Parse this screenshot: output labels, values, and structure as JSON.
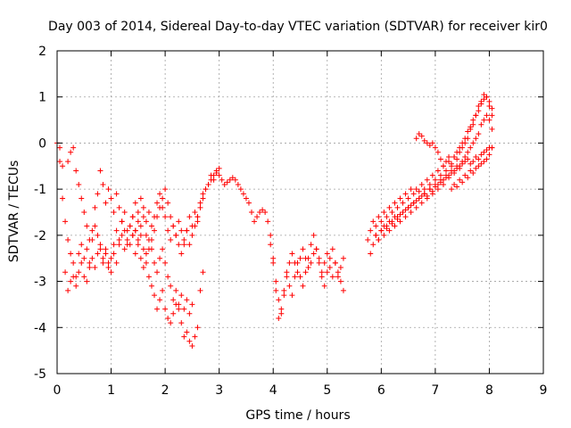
{
  "chart_data": {
    "type": "scatter",
    "title": "Day 003 of 2014, Sidereal Day-to-day VTEC variation (SDTVAR) for receiver kir0",
    "xlabel": "GPS time / hours",
    "ylabel": "SDTVAR / TECUs",
    "xlim": [
      0,
      9
    ],
    "ylim": [
      -5,
      2
    ],
    "xticks": [
      0,
      1,
      2,
      3,
      4,
      5,
      6,
      7,
      8,
      9
    ],
    "yticks": [
      2,
      1,
      0,
      -1,
      -2,
      -3,
      -4,
      -5
    ],
    "xtick_labels": [
      "0",
      "1",
      "2",
      "3",
      "4",
      "5",
      "6",
      "7",
      "8",
      "9"
    ],
    "ytick_labels": [
      "2",
      "1",
      "0",
      "-1",
      "-2",
      "-3",
      "-4",
      "-5"
    ],
    "grid": true,
    "marker": "+",
    "color": "#ff0000",
    "series": [
      {
        "name": "SDTVAR",
        "segments": [
          {
            "x": [
              0.0,
              0.05,
              0.1,
              0.15,
              0.2,
              0.25,
              0.3,
              0.35,
              0.4,
              0.45,
              0.5,
              0.55,
              0.6,
              0.65,
              0.7,
              0.75,
              0.8,
              0.85,
              0.9,
              0.95,
              1.0,
              1.05,
              1.1,
              1.15,
              1.2,
              1.25,
              1.3,
              1.35,
              1.4,
              1.45,
              1.5,
              1.55,
              1.6,
              1.65,
              1.7,
              1.75,
              1.8,
              1.85,
              1.9,
              1.95,
              2.0,
              2.05,
              2.1,
              2.15,
              2.2,
              2.25,
              2.3,
              2.35,
              2.4,
              2.45,
              2.5,
              2.55,
              2.6,
              2.65,
              2.7
            ],
            "y": [
              0.0,
              -0.4,
              -1.2,
              -2.8,
              -3.2,
              -3.0,
              -2.6,
              -2.9,
              -2.4,
              -2.2,
              -2.5,
              -2.3,
              -2.6,
              -2.1,
              -1.8,
              -2.0,
              -2.3,
              -2.6,
              -2.4,
              -2.7,
              -2.5,
              -2.2,
              -1.9,
              -2.1,
              -1.7,
              -1.9,
              -2.2,
              -1.8,
              -1.6,
              -1.9,
              -1.7,
              -2.0,
              -2.3,
              -2.6,
              -2.9,
              -3.1,
              -3.3,
              -3.6,
              -3.4,
              -3.2,
              -3.6,
              -3.8,
              -3.9,
              -3.7,
              -3.5,
              -3.6,
              -3.9,
              -4.2,
              -4.1,
              -4.3,
              -4.4,
              -4.2,
              -4.0,
              -3.2,
              -2.8
            ]
          },
          {
            "x": [
              0.2,
              0.25,
              0.3,
              0.35,
              0.4,
              0.45,
              0.5,
              0.55,
              0.6,
              0.65,
              0.7,
              0.75,
              0.8,
              0.85,
              0.9,
              0.95,
              1.0,
              1.05,
              1.1,
              1.15,
              1.2,
              1.25,
              1.3,
              1.35,
              1.4,
              1.45,
              1.5,
              1.55,
              1.6,
              1.65,
              1.7,
              1.75,
              1.8,
              1.85,
              1.9,
              1.95,
              2.0,
              2.05,
              2.1,
              2.15,
              2.2,
              2.25,
              2.3,
              2.35,
              2.4,
              2.45,
              2.5,
              2.55,
              2.6
            ],
            "y": [
              -0.4,
              -0.2,
              -0.1,
              -0.6,
              -0.9,
              -1.2,
              -1.5,
              -1.8,
              -2.1,
              -1.9,
              -1.4,
              -1.1,
              -0.6,
              -0.9,
              -1.3,
              -1.0,
              -1.2,
              -1.5,
              -1.1,
              -1.4,
              -1.7,
              -1.5,
              -1.9,
              -2.2,
              -2.0,
              -2.4,
              -2.1,
              -1.8,
              -1.6,
              -2.0,
              -2.3,
              -2.1,
              -1.9,
              -1.6,
              -1.4,
              -1.2,
              -1.0,
              -1.3,
              -1.6,
              -1.8,
              -2.0,
              -2.2,
              -2.4,
              -2.1,
              -1.9,
              -2.2,
              -2.0,
              -1.8,
              -1.6
            ]
          },
          {
            "x": [
              0.05,
              0.1,
              0.15,
              0.2,
              0.25,
              0.3,
              0.35,
              0.4,
              0.45,
              0.5,
              0.55,
              0.6,
              0.65,
              0.7,
              0.75,
              0.8,
              0.85,
              0.9,
              0.95,
              1.0,
              1.05,
              1.1,
              1.15,
              1.2,
              1.25,
              1.3,
              1.35,
              1.4,
              1.45,
              1.5,
              1.55,
              1.6,
              1.65,
              1.7,
              1.75,
              1.8,
              1.85,
              1.9,
              1.95,
              2.0,
              2.05,
              2.1,
              2.15,
              2.2,
              2.25,
              2.3,
              2.35,
              2.4,
              2.45,
              2.5
            ],
            "y": [
              -0.1,
              -0.5,
              -1.7,
              -2.1,
              -2.4,
              -2.9,
              -3.1,
              -2.8,
              -2.6,
              -2.9,
              -3.0,
              -2.7,
              -2.5,
              -2.7,
              -2.4,
              -2.2,
              -2.5,
              -2.3,
              -2.6,
              -2.8,
              -2.4,
              -2.6,
              -2.2,
              -2.0,
              -2.3,
              -2.1,
              -1.8,
              -2.0,
              -1.9,
              -2.2,
              -2.5,
              -2.7,
              -2.4,
              -2.1,
              -2.3,
              -2.6,
              -2.8,
              -2.5,
              -2.3,
              -2.6,
              -2.9,
              -3.1,
              -3.4,
              -3.2,
              -3.5,
              -3.3,
              -3.6,
              -3.4,
              -3.7,
              -3.5
            ]
          },
          {
            "x": [
              1.4,
              1.45,
              1.5,
              1.55,
              1.6,
              1.65,
              1.7,
              1.75,
              1.8,
              1.85,
              1.9,
              1.95,
              2.0,
              2.05,
              2.1,
              2.15,
              2.2,
              2.25,
              2.3,
              2.35,
              2.4,
              2.45,
              2.5,
              2.55,
              2.6,
              2.65,
              2.7,
              2.75,
              2.8,
              2.85,
              2.9,
              2.95,
              3.0
            ],
            "y": [
              -1.6,
              -1.3,
              -1.5,
              -1.2,
              -1.4,
              -1.7,
              -1.5,
              -1.8,
              -1.6,
              -1.3,
              -1.1,
              -1.4,
              -1.6,
              -1.9,
              -2.1,
              -1.8,
              -2.0,
              -1.7,
              -1.9,
              -2.2,
              -1.9,
              -1.6,
              -1.8,
              -1.5,
              -1.7,
              -1.4,
              -1.2,
              -1.0,
              -0.9,
              -0.7,
              -0.8,
              -0.6,
              -0.55
            ]
          },
          {
            "x": [
              2.6,
              2.65,
              2.7,
              2.75,
              2.8,
              2.85,
              2.9,
              2.95,
              3.0,
              3.05,
              3.1,
              3.15,
              3.2,
              3.25,
              3.3,
              3.35,
              3.4,
              3.45,
              3.5,
              3.55,
              3.6,
              3.65,
              3.7,
              3.75,
              3.8,
              3.85,
              3.9,
              3.95,
              4.0,
              4.05,
              4.1,
              4.15,
              4.2,
              4.25,
              4.3,
              4.35,
              4.4,
              4.45,
              4.5,
              4.55,
              4.6,
              4.65,
              4.7,
              4.75,
              4.8,
              4.85,
              4.9,
              4.95,
              5.0,
              5.05,
              5.1,
              5.15,
              5.2,
              5.25,
              5.3
            ],
            "y": [
              -1.6,
              -1.3,
              -1.1,
              -1.0,
              -0.9,
              -0.8,
              -0.7,
              -0.65,
              -0.7,
              -0.8,
              -0.9,
              -0.85,
              -0.8,
              -0.75,
              -0.8,
              -0.9,
              -1.0,
              -1.1,
              -1.2,
              -1.3,
              -1.5,
              -1.7,
              -1.6,
              -1.5,
              -1.45,
              -1.5,
              -1.7,
              -2.0,
              -2.5,
              -3.2,
              -3.8,
              -3.6,
              -3.3,
              -2.9,
              -2.6,
              -2.4,
              -2.6,
              -2.8,
              -2.5,
              -2.3,
              -2.5,
              -2.7,
              -2.6,
              -2.4,
              -2.3,
              -2.5,
              -2.8,
              -2.6,
              -2.4,
              -2.7,
              -2.9,
              -2.6,
              -2.8,
              -3.0,
              -3.2
            ]
          },
          {
            "x": [
              3.95,
              4.0,
              4.05,
              4.1,
              4.15,
              4.2,
              4.25,
              4.3,
              4.35,
              4.4,
              4.45,
              4.5,
              4.55,
              4.6,
              4.65,
              4.7,
              4.75,
              4.8,
              4.85,
              4.9,
              4.95,
              5.0,
              5.05,
              5.1,
              5.15,
              5.2,
              5.25,
              5.3
            ],
            "y": [
              -2.2,
              -2.6,
              -3.0,
              -3.4,
              -3.7,
              -3.2,
              -2.8,
              -3.1,
              -3.3,
              -2.9,
              -2.6,
              -2.9,
              -3.1,
              -2.8,
              -2.5,
              -2.2,
              -2.0,
              -2.3,
              -2.6,
              -2.9,
              -3.1,
              -2.8,
              -2.5,
              -2.3,
              -2.6,
              -2.9,
              -2.7,
              -2.5
            ]
          },
          {
            "x": [
              5.75,
              5.8,
              5.85,
              5.9,
              5.95,
              6.0,
              6.05,
              6.1,
              6.15,
              6.2,
              6.25,
              6.3,
              6.35,
              6.4,
              6.45,
              6.5,
              6.55,
              6.6,
              6.65,
              6.7,
              6.75,
              6.8,
              6.85,
              6.9,
              6.95,
              7.0,
              7.05,
              7.1,
              7.15,
              7.2,
              7.25,
              7.3,
              7.35,
              7.4,
              7.45,
              7.5,
              7.55,
              7.6,
              7.65,
              7.7,
              7.75,
              7.8,
              7.85,
              7.9,
              7.95,
              8.0,
              8.05
            ],
            "y": [
              -2.1,
              -1.9,
              -1.7,
              -1.8,
              -1.6,
              -1.7,
              -1.5,
              -1.6,
              -1.4,
              -1.5,
              -1.3,
              -1.4,
              -1.2,
              -1.3,
              -1.1,
              -1.2,
              -1.0,
              -1.1,
              -1.0,
              -1.05,
              -0.9,
              -1.0,
              -0.8,
              -0.9,
              -0.7,
              -0.8,
              -0.6,
              -0.7,
              -0.5,
              -0.6,
              -0.4,
              -0.5,
              -0.3,
              -0.35,
              -0.2,
              -0.1,
              0.0,
              0.1,
              0.3,
              0.4,
              0.6,
              0.8,
              0.9,
              1.05,
              1.0,
              0.8,
              0.6
            ]
          },
          {
            "x": [
              5.8,
              5.85,
              5.9,
              5.95,
              6.0,
              6.05,
              6.1,
              6.15,
              6.2,
              6.25,
              6.3,
              6.35,
              6.4,
              6.45,
              6.5,
              6.55,
              6.6,
              6.65,
              6.7,
              6.75,
              6.8,
              6.85,
              6.9,
              6.95,
              7.0,
              7.05,
              7.1,
              7.15,
              7.2,
              7.25,
              7.3,
              7.35,
              7.4,
              7.45,
              7.5,
              7.55,
              7.6,
              7.65,
              7.7,
              7.75,
              7.8,
              7.85,
              7.9,
              7.95,
              8.0,
              8.05
            ],
            "y": [
              -2.4,
              -2.2,
              -2.0,
              -2.1,
              -1.9,
              -2.0,
              -1.8,
              -1.9,
              -1.7,
              -1.8,
              -1.6,
              -1.7,
              -1.5,
              -1.6,
              -1.4,
              -1.5,
              -1.3,
              -1.4,
              -1.2,
              -1.3,
              -1.1,
              -1.2,
              -1.0,
              -1.1,
              -0.9,
              -1.0,
              -0.8,
              -0.9,
              -0.7,
              -0.75,
              -0.6,
              -0.65,
              -0.5,
              -0.55,
              -0.4,
              -0.3,
              -0.2,
              -0.1,
              0.0,
              0.1,
              0.2,
              0.4,
              0.5,
              0.6,
              0.5,
              0.3
            ]
          },
          {
            "x": [
              5.9,
              5.95,
              6.0,
              6.05,
              6.1,
              6.15,
              6.2,
              6.25,
              6.3,
              6.35,
              6.4,
              6.45,
              6.5,
              6.55,
              6.6,
              6.65,
              6.7,
              6.75,
              6.8,
              6.85,
              6.9,
              6.95,
              7.0,
              7.05,
              7.1,
              7.15,
              7.2,
              7.25,
              7.3,
              7.35,
              7.4,
              7.45,
              7.5,
              7.55,
              7.6,
              7.65,
              7.7,
              7.75,
              7.8,
              7.85,
              7.9,
              7.95,
              8.0,
              8.05
            ],
            "y": [
              -2.0,
              -2.1,
              -1.9,
              -1.8,
              -1.85,
              -1.7,
              -1.75,
              -1.6,
              -1.65,
              -1.55,
              -1.5,
              -1.45,
              -1.4,
              -1.35,
              -1.3,
              -1.25,
              -1.2,
              -1.15,
              -1.1,
              -1.15,
              -1.0,
              -1.05,
              -0.95,
              -0.9,
              -0.85,
              -0.8,
              -0.75,
              -0.7,
              -0.65,
              -0.6,
              -0.55,
              -0.5,
              -0.45,
              -0.4,
              -0.35,
              -0.45,
              -0.4,
              -0.3,
              -0.35,
              -0.25,
              -0.2,
              -0.15,
              -0.1,
              -0.1
            ]
          },
          {
            "x": [
              6.65,
              6.7,
              6.75,
              6.8,
              6.85,
              6.9,
              6.95,
              7.0,
              7.05,
              7.1,
              7.15,
              7.2,
              7.25,
              7.3,
              7.35,
              7.4,
              7.45,
              7.5,
              7.55,
              7.6,
              7.65,
              7.7,
              7.75,
              7.8,
              7.85,
              7.9,
              7.95,
              8.0,
              8.05
            ],
            "y": [
              0.1,
              0.2,
              0.15,
              0.05,
              0.0,
              -0.05,
              0.0,
              -0.1,
              -0.2,
              -0.35,
              -0.5,
              -0.4,
              -0.3,
              -0.45,
              -0.3,
              -0.2,
              -0.1,
              0.0,
              0.1,
              0.25,
              0.35,
              0.5,
              0.6,
              0.7,
              0.85,
              0.95,
              1.0,
              0.9,
              0.75
            ]
          },
          {
            "x": [
              7.3,
              7.35,
              7.4,
              7.45,
              7.5,
              7.55,
              7.6,
              7.65,
              7.7,
              7.75,
              7.8,
              7.85,
              7.9,
              7.95,
              8.0,
              8.05
            ],
            "y": [
              -1.0,
              -0.9,
              -0.95,
              -0.8,
              -0.85,
              -0.7,
              -0.75,
              -0.6,
              -0.65,
              -0.55,
              -0.5,
              -0.45,
              -0.4,
              -0.35,
              -0.25,
              -0.1
            ]
          }
        ]
      }
    ]
  }
}
